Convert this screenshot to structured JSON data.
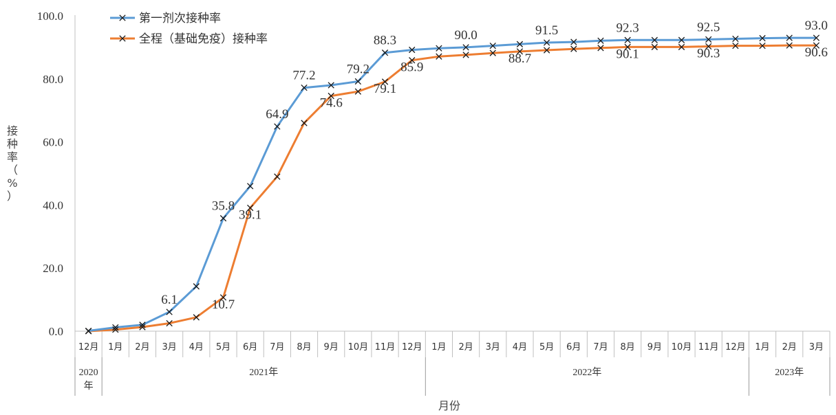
{
  "chart_data": {
    "type": "line",
    "ylabel_chars": [
      "接",
      "种",
      "率",
      "（",
      "%",
      "）"
    ],
    "xlabel": "月份",
    "ylim": [
      0,
      100
    ],
    "yticks": [
      "0.0",
      "20.0",
      "40.0",
      "60.0",
      "80.0",
      "100.0"
    ],
    "categories": [
      "12月",
      "1月",
      "2月",
      "3月",
      "4月",
      "5月",
      "6月",
      "7月",
      "8月",
      "9月",
      "10月",
      "11月",
      "12月",
      "1月",
      "2月",
      "3月",
      "4月",
      "5月",
      "6月",
      "7月",
      "8月",
      "9月",
      "10月",
      "11月",
      "12月",
      "1月",
      "2月",
      "3月"
    ],
    "year_groups": [
      {
        "label_lines": [
          "2020",
          "年"
        ],
        "start": 0,
        "end": 0
      },
      {
        "label_lines": [
          "2021年"
        ],
        "start": 1,
        "end": 12
      },
      {
        "label_lines": [
          "2022年"
        ],
        "start": 13,
        "end": 24
      },
      {
        "label_lines": [
          "2023年"
        ],
        "start": 25,
        "end": 27
      }
    ],
    "series": [
      {
        "name": "第一剂次接种率",
        "color": "#5B9BD5",
        "values": [
          0.1,
          1.2,
          2.0,
          6.1,
          14.2,
          35.8,
          46.0,
          64.9,
          77.2,
          78.0,
          79.2,
          88.3,
          89.2,
          89.7,
          90.0,
          90.5,
          91.0,
          91.5,
          91.7,
          92.1,
          92.3,
          92.3,
          92.3,
          92.5,
          92.7,
          92.9,
          93.0,
          93.0
        ],
        "labels": {
          "3": "6.1",
          "5": "35.8",
          "7": "64.9",
          "8": "77.2",
          "10": "79.2",
          "11": "88.3",
          "14": "90.0",
          "17": "91.5",
          "20": "92.3",
          "23": "92.5",
          "27": "93.0"
        }
      },
      {
        "name": "全程（基础免疫）接种率",
        "color": "#ED7D31",
        "values": [
          0.0,
          0.5,
          1.3,
          2.5,
          4.4,
          10.7,
          39.1,
          49.0,
          66.0,
          74.6,
          76.0,
          79.1,
          85.9,
          87.1,
          87.6,
          88.2,
          88.7,
          89.1,
          89.5,
          89.8,
          90.1,
          90.1,
          90.1,
          90.3,
          90.5,
          90.5,
          90.6,
          90.6
        ],
        "labels": {
          "5": "10.7",
          "6": "39.1",
          "9": "74.6",
          "11": "79.1",
          "12": "85.9",
          "16": "88.7",
          "20": "90.1",
          "23": "90.3",
          "27": "90.6"
        }
      }
    ]
  }
}
